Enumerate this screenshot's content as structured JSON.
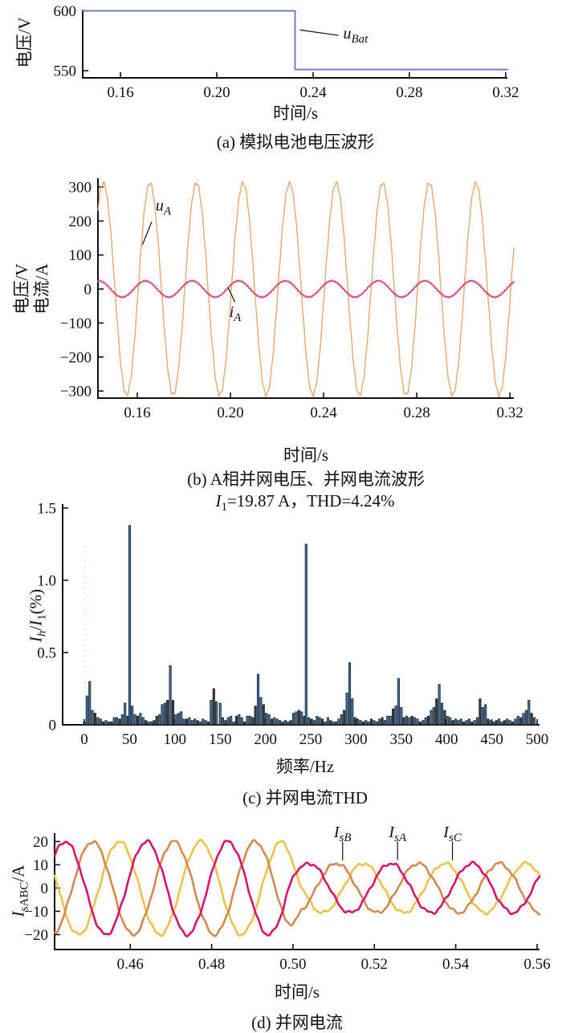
{
  "panels": {
    "a": {
      "ylabel": "电压/V",
      "xlabel": "时间/s",
      "caption": "(a) 模拟电池电压波形"
    },
    "b": {
      "ylabel_line1": "电压/V",
      "ylabel_line2": "电流/A",
      "xlabel": "时间/s",
      "caption": "(b) A相并网电压、并网电流波形"
    },
    "c": {
      "xlabel": "频率/Hz",
      "caption": "(c) 并网电流THD",
      "title": {
        "main": "I",
        "sub": "1",
        "rest": "=19.87 A，THD=4.24%"
      },
      "ylabel": {
        "m1": "I",
        "s1": "h",
        "sep": "/",
        "m2": "I",
        "s2": "1",
        "unit": "(%)"
      }
    },
    "d": {
      "xlabel": "时间/s",
      "caption": "(d) 并网电流",
      "ylabel": {
        "m": "I",
        "s": "sABC",
        "unit": "/A"
      }
    }
  },
  "chart_data": [
    {
      "type": "line",
      "name": "battery-voltage-step",
      "xlabel": "时间/s",
      "ylabel": "电压/V",
      "xlim": [
        0.1443,
        0.3207
      ],
      "ylim": [
        544,
        601
      ],
      "xticks": [
        0.16,
        0.2,
        0.24,
        0.28,
        0.32
      ],
      "xtick_labels": [
        "0.16",
        "0.20",
        "0.24",
        "0.28",
        "0.32"
      ],
      "yticks": [
        550,
        600
      ],
      "ytick_labels": [
        "550",
        "600"
      ],
      "line_color": "#6B82BC",
      "line_width": 2,
      "points": [
        [
          0.1443,
          600
        ],
        [
          0.2325,
          600
        ],
        [
          0.2325,
          551
        ],
        [
          0.3207,
          551
        ]
      ],
      "annotations": [
        {
          "main": "u",
          "sub": "Bat",
          "anchor": "start",
          "label_at": [
            0.2525,
            577
          ],
          "line": [
            [
              0.2345,
              584
            ],
            [
              0.2505,
              579.5
            ]
          ]
        }
      ]
    },
    {
      "type": "line",
      "name": "phaseA-grid-voltage-current",
      "xlabel": "时间/s",
      "ylabel": "电压/V 电流/A",
      "xlim": [
        0.1431,
        0.3217
      ],
      "ylim": [
        -321,
        326
      ],
      "xticks": [
        0.16,
        0.2,
        0.24,
        0.28,
        0.32
      ],
      "xtick_labels": [
        "0.16",
        "0.20",
        "0.24",
        "0.28",
        "0.32"
      ],
      "yticks": [
        -300,
        -200,
        -100,
        0,
        100,
        200,
        300
      ],
      "ytick_labels": [
        "−300",
        "−200",
        "−100",
        "0",
        "100",
        "200",
        "300"
      ],
      "series": [
        {
          "name": "uA",
          "color": "#E5A873",
          "amplitude": 311,
          "freq_hz": 50,
          "t_peak": 0.1654,
          "ripple_amp": 5,
          "ripple_w": 4021,
          "width": 1.4
        },
        {
          "name": "iA",
          "color": "#DB5088",
          "amplitude": 24,
          "freq_hz": 50,
          "t_peak": 0.2035,
          "ripple_amp": 1.2,
          "ripple_w": 5341,
          "width": 2.0
        }
      ],
      "sample_dt": 5e-05,
      "annotations": [
        {
          "main": "u",
          "sub": "A",
          "anchor": "start",
          "label_at": [
            0.1679,
            230
          ],
          "line": [
            [
              0.1662,
              198
            ],
            [
              0.1622,
              130
            ]
          ]
        },
        {
          "main": "i",
          "sub": "A",
          "anchor": "start",
          "label_at": [
            0.1995,
            -82
          ],
          "line": [
            [
              0.199,
              4
            ],
            [
              0.2019,
              -38
            ]
          ]
        }
      ]
    },
    {
      "type": "bar",
      "name": "grid-current-THD-spectrum",
      "title": "I1=19.87 A, THD=4.24%",
      "I1_A": 19.87,
      "THD_percent": 4.24,
      "xlabel": "频率/Hz",
      "ylabel": "Ih/I1(%)",
      "xlim": [
        -23.9,
        502.7
      ],
      "ylim": [
        0,
        1.528
      ],
      "xticks": [
        0,
        50,
        100,
        150,
        200,
        250,
        300,
        350,
        400,
        450,
        500
      ],
      "xtick_labels": [
        "0",
        "50",
        "100",
        "150",
        "200",
        "250",
        "300",
        "350",
        "400",
        "450",
        "500"
      ],
      "yticks": [
        0,
        0.5,
        1.0,
        1.5
      ],
      "ytick_labels": [
        "0",
        "0.5",
        "1.0",
        "1.5"
      ],
      "bar_width": 2.4,
      "bar_color": "#3A70A6",
      "bar_dark_color": "#3C3C3C",
      "bar_edge": "#1b1b1b",
      "guide_x": 1,
      "bars": [
        [
          0,
          0.02,
          1
        ],
        [
          3,
          0.2,
          0
        ],
        [
          6,
          0.3,
          0
        ],
        [
          9,
          0.1,
          0
        ],
        [
          12,
          0.08,
          1
        ],
        [
          15,
          0.05,
          0
        ],
        [
          18,
          0.04,
          0
        ],
        [
          21,
          0.02,
          1
        ],
        [
          24,
          0.03,
          0
        ],
        [
          27,
          0.02,
          0
        ],
        [
          30,
          0.02,
          1
        ],
        [
          33,
          0.05,
          0
        ],
        [
          36,
          0.05,
          0
        ],
        [
          39,
          0.04,
          1
        ],
        [
          42,
          0.07,
          0
        ],
        [
          45,
          0.15,
          0
        ],
        [
          48,
          0.06,
          1
        ],
        [
          50,
          1.38,
          0
        ],
        [
          53,
          0.13,
          0
        ],
        [
          56,
          0.07,
          0
        ],
        [
          59,
          0.06,
          1
        ],
        [
          62,
          0.08,
          0
        ],
        [
          65,
          0.05,
          0
        ],
        [
          68,
          0.03,
          1
        ],
        [
          71,
          0.02,
          0
        ],
        [
          74,
          0.02,
          0
        ],
        [
          77,
          0.03,
          1
        ],
        [
          80,
          0.06,
          1
        ],
        [
          83,
          0.07,
          0
        ],
        [
          86,
          0.14,
          0
        ],
        [
          89,
          0.15,
          0
        ],
        [
          92,
          0.17,
          1
        ],
        [
          95,
          0.41,
          0
        ],
        [
          98,
          0.17,
          1
        ],
        [
          101,
          0.07,
          0
        ],
        [
          104,
          0.08,
          0
        ],
        [
          107,
          0.09,
          0
        ],
        [
          110,
          0.04,
          0
        ],
        [
          113,
          0.04,
          1
        ],
        [
          116,
          0.05,
          0
        ],
        [
          119,
          0.03,
          0
        ],
        [
          122,
          0.04,
          0
        ],
        [
          125,
          0.03,
          1
        ],
        [
          128,
          0.02,
          0
        ],
        [
          131,
          0.04,
          0
        ],
        [
          134,
          0.03,
          0
        ],
        [
          137,
          0.02,
          1
        ],
        [
          140,
          0.17,
          0
        ],
        [
          143,
          0.25,
          1
        ],
        [
          146,
          0.16,
          0
        ],
        [
          150,
          0.15,
          0
        ],
        [
          153,
          0.05,
          0
        ],
        [
          156,
          0.03,
          1
        ],
        [
          159,
          0.05,
          0
        ],
        [
          162,
          0.06,
          0
        ],
        [
          165,
          0.02,
          0
        ],
        [
          168,
          0.06,
          1
        ],
        [
          171,
          0.07,
          0
        ],
        [
          174,
          0.05,
          0
        ],
        [
          177,
          0.02,
          1
        ],
        [
          180,
          0.06,
          0
        ],
        [
          183,
          0.06,
          0
        ],
        [
          186,
          0.05,
          1
        ],
        [
          189,
          0.13,
          1
        ],
        [
          192,
          0.35,
          0
        ],
        [
          195,
          0.19,
          0
        ],
        [
          198,
          0.14,
          1
        ],
        [
          201,
          0.08,
          0
        ],
        [
          204,
          0.07,
          0
        ],
        [
          207,
          0.04,
          1
        ],
        [
          210,
          0.05,
          0
        ],
        [
          213,
          0.04,
          0
        ],
        [
          216,
          0.03,
          0
        ],
        [
          219,
          0.02,
          1
        ],
        [
          222,
          0.03,
          0
        ],
        [
          225,
          0.02,
          0
        ],
        [
          228,
          0.03,
          1
        ],
        [
          231,
          0.08,
          0
        ],
        [
          234,
          0.09,
          0
        ],
        [
          237,
          0.1,
          1
        ],
        [
          240,
          0.09,
          0
        ],
        [
          243,
          0.06,
          1
        ],
        [
          245,
          1.25,
          0
        ],
        [
          248,
          0.05,
          0
        ],
        [
          251,
          0.04,
          1
        ],
        [
          254,
          0.03,
          0
        ],
        [
          257,
          0.06,
          0
        ],
        [
          260,
          0.05,
          0
        ],
        [
          263,
          0.04,
          1
        ],
        [
          266,
          0.02,
          0
        ],
        [
          269,
          0.05,
          0
        ],
        [
          272,
          0.03,
          1
        ],
        [
          275,
          0.02,
          0
        ],
        [
          278,
          0.02,
          0
        ],
        [
          281,
          0.04,
          0
        ],
        [
          284,
          0.07,
          0
        ],
        [
          287,
          0.1,
          1
        ],
        [
          290,
          0.22,
          0
        ],
        [
          293,
          0.43,
          0
        ],
        [
          296,
          0.18,
          0
        ],
        [
          299,
          0.05,
          1
        ],
        [
          302,
          0.04,
          0
        ],
        [
          305,
          0.03,
          0
        ],
        [
          308,
          0.02,
          1
        ],
        [
          311,
          0.03,
          0
        ],
        [
          314,
          0.02,
          0
        ],
        [
          317,
          0.04,
          1
        ],
        [
          320,
          0.03,
          0
        ],
        [
          323,
          0.02,
          0
        ],
        [
          326,
          0.04,
          0
        ],
        [
          329,
          0.05,
          1
        ],
        [
          332,
          0.03,
          0
        ],
        [
          335,
          0.06,
          0
        ],
        [
          338,
          0.06,
          0
        ],
        [
          341,
          0.11,
          1
        ],
        [
          344,
          0.13,
          0
        ],
        [
          347,
          0.32,
          0
        ],
        [
          350,
          0.12,
          0
        ],
        [
          353,
          0.05,
          1
        ],
        [
          356,
          0.06,
          0
        ],
        [
          359,
          0.05,
          0
        ],
        [
          362,
          0.06,
          1
        ],
        [
          365,
          0.05,
          0
        ],
        [
          368,
          0.04,
          0
        ],
        [
          371,
          0.02,
          1
        ],
        [
          374,
          0.03,
          0
        ],
        [
          377,
          0.05,
          0
        ],
        [
          380,
          0.06,
          1
        ],
        [
          383,
          0.1,
          0
        ],
        [
          386,
          0.12,
          0
        ],
        [
          389,
          0.18,
          1
        ],
        [
          392,
          0.28,
          0
        ],
        [
          395,
          0.15,
          0
        ],
        [
          398,
          0.1,
          1
        ],
        [
          401,
          0.06,
          0
        ],
        [
          404,
          0.05,
          0
        ],
        [
          407,
          0.03,
          1
        ],
        [
          410,
          0.04,
          0
        ],
        [
          413,
          0.03,
          0
        ],
        [
          416,
          0.04,
          0
        ],
        [
          419,
          0.02,
          1
        ],
        [
          422,
          0.03,
          0
        ],
        [
          425,
          0.04,
          0
        ],
        [
          428,
          0.02,
          1
        ],
        [
          431,
          0.03,
          0
        ],
        [
          434,
          0.05,
          0
        ],
        [
          437,
          0.18,
          1
        ],
        [
          440,
          0.12,
          0
        ],
        [
          443,
          0.14,
          0
        ],
        [
          446,
          0.04,
          1
        ],
        [
          449,
          0.03,
          0
        ],
        [
          452,
          0.02,
          0
        ],
        [
          455,
          0.03,
          1
        ],
        [
          458,
          0.04,
          0
        ],
        [
          461,
          0.02,
          0
        ],
        [
          464,
          0.03,
          1
        ],
        [
          467,
          0.04,
          0
        ],
        [
          470,
          0.03,
          0
        ],
        [
          473,
          0.02,
          1
        ],
        [
          476,
          0.04,
          0
        ],
        [
          479,
          0.06,
          0
        ],
        [
          482,
          0.05,
          1
        ],
        [
          485,
          0.08,
          0
        ],
        [
          488,
          0.1,
          0
        ],
        [
          491,
          0.17,
          0
        ],
        [
          494,
          0.08,
          1
        ],
        [
          497,
          0.05,
          0
        ]
      ]
    },
    {
      "type": "line",
      "name": "three-phase-grid-currents",
      "xlabel": "时间/s",
      "ylabel": "IsABC/A",
      "xlim": [
        0.4414,
        0.5606
      ],
      "ylim": [
        -26.4,
        23.6
      ],
      "xticks": [
        0.46,
        0.48,
        0.5,
        0.52,
        0.54,
        0.56
      ],
      "xtick_labels": [
        "0.46",
        "0.48",
        "0.50",
        "0.52",
        "0.54",
        "0.56"
      ],
      "yticks": [
        -20,
        -10,
        0,
        10,
        20
      ],
      "ytick_labels": [
        "−20",
        "−10",
        "0",
        "10",
        "20"
      ],
      "freq_hz": 50,
      "amp_before": 20,
      "amp_after": 10.6,
      "t_switch_start": 0.498,
      "t_switch_end": 0.502,
      "noise_amp": 0.8,
      "line_width": 2.6,
      "sample_dt": 0.0001,
      "series": [
        {
          "name": "IsC",
          "color": "#EBC34B",
          "t_peak": 0.4773,
          "phase_seed": 2
        },
        {
          "name": "IsB",
          "color": "#D28A52",
          "t_peak": 0.4707,
          "phase_seed": 1
        },
        {
          "name": "IsA",
          "color": "#D4156B",
          "t_peak": 0.464,
          "phase_seed": 0
        }
      ],
      "annotations": [
        {
          "main": "I",
          "sub": "sB",
          "t": 0.5122
        },
        {
          "main": "I",
          "sub": "sA",
          "t": 0.5257
        },
        {
          "main": "I",
          "sub": "sC",
          "t": 0.5392
        }
      ],
      "annotation_label_y": 21.8,
      "annotation_line_y": [
        20.0,
        12.0
      ]
    }
  ]
}
